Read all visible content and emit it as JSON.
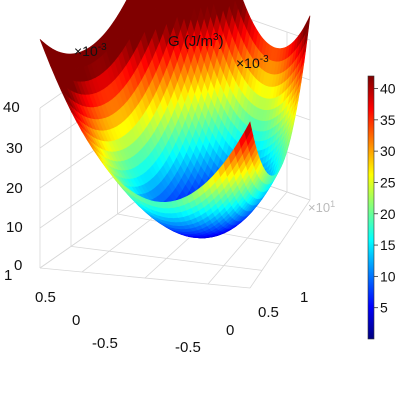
{
  "chart_data": {
    "type": "surface",
    "title": "G (J/m",
    "title_sup": "3",
    "title_close": ")",
    "colormap": "jet",
    "surface": "paraboloid",
    "z_min": 0,
    "z_max": 42,
    "x_range": [
      -0.7,
      1
    ],
    "y_range": [
      -0.7,
      1
    ],
    "x_multiplier_base": "×10",
    "x_multiplier_exp": "-3",
    "y_multiplier_base": "×10",
    "y_multiplier_exp": "-3",
    "z_multiplier_base": "×10",
    "z_multiplier_exp": "1",
    "x_ticks": [
      "-0.5",
      "0",
      "0.5",
      "1"
    ],
    "y_ticks": [
      "-0.5",
      "0",
      "0.5",
      "1"
    ],
    "z_ticks": [
      "0",
      "10",
      "20",
      "30",
      "40"
    ],
    "z_tick_values": [
      0,
      10,
      20,
      30,
      40
    ],
    "colorbar": {
      "min": 0,
      "max": 42,
      "ticks": [
        "5",
        "10",
        "15",
        "20",
        "25",
        "30",
        "35",
        "40"
      ],
      "tick_values": [
        5,
        10,
        15,
        20,
        25,
        30,
        35,
        40
      ]
    },
    "grid": true
  }
}
